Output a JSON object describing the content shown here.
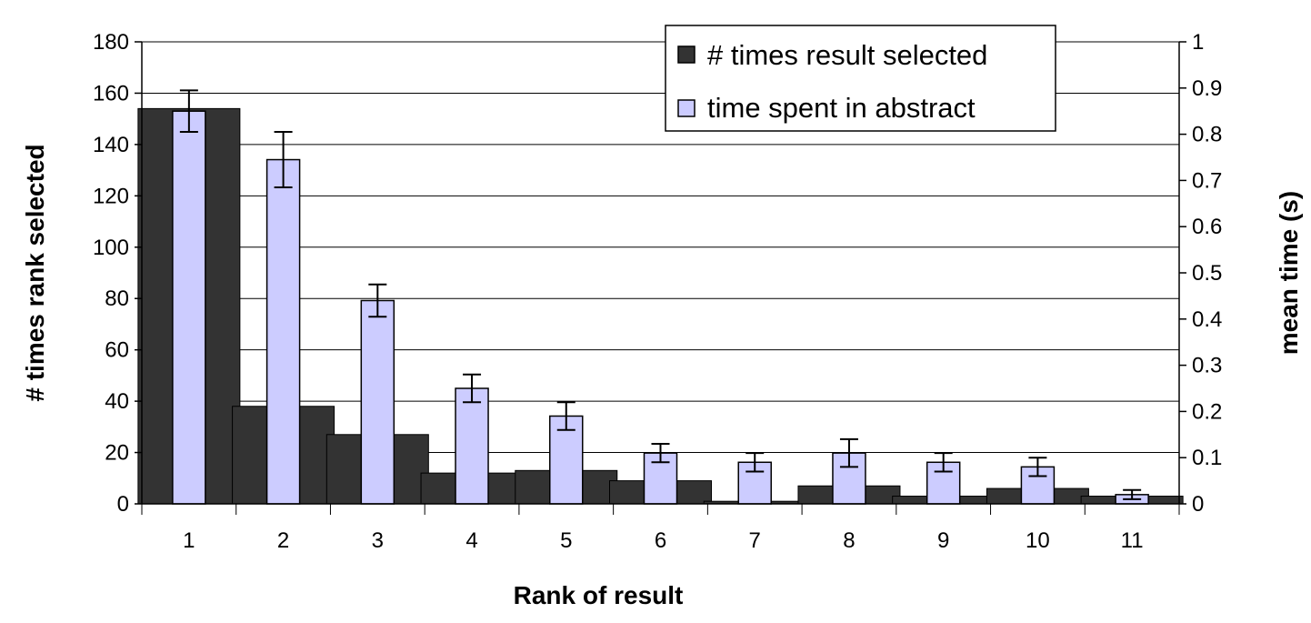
{
  "chart_data": {
    "type": "bar",
    "categories": [
      "1",
      "2",
      "3",
      "4",
      "5",
      "6",
      "7",
      "8",
      "9",
      "10",
      "11"
    ],
    "series": [
      {
        "name": "# times result selected",
        "axis": "left",
        "color": "#333333",
        "values": [
          154,
          38,
          27,
          12,
          13,
          9,
          1,
          7,
          3,
          6,
          3
        ]
      },
      {
        "name": "time spent in abstract",
        "axis": "right",
        "color": "#ccccff",
        "values": [
          0.85,
          0.745,
          0.44,
          0.25,
          0.19,
          0.11,
          0.09,
          0.11,
          0.09,
          0.08,
          0.02
        ],
        "error": [
          0.045,
          0.06,
          0.035,
          0.03,
          0.03,
          0.02,
          0.02,
          0.03,
          0.02,
          0.02,
          0.01
        ]
      }
    ],
    "xlabel": "Rank of result",
    "ylabel": "# times rank selected",
    "y2label": "mean time (s)",
    "ylim": [
      0,
      180
    ],
    "y2lim": [
      0,
      1
    ],
    "yticks": [
      "0",
      "20",
      "40",
      "60",
      "80",
      "100",
      "120",
      "140",
      "160",
      "180"
    ],
    "y2ticks": [
      "0",
      "0.1",
      "0.2",
      "0.3",
      "0.4",
      "0.5",
      "0.6",
      "0.7",
      "0.8",
      "0.9",
      "1"
    ],
    "grid": true,
    "legend_position": "top-right"
  }
}
